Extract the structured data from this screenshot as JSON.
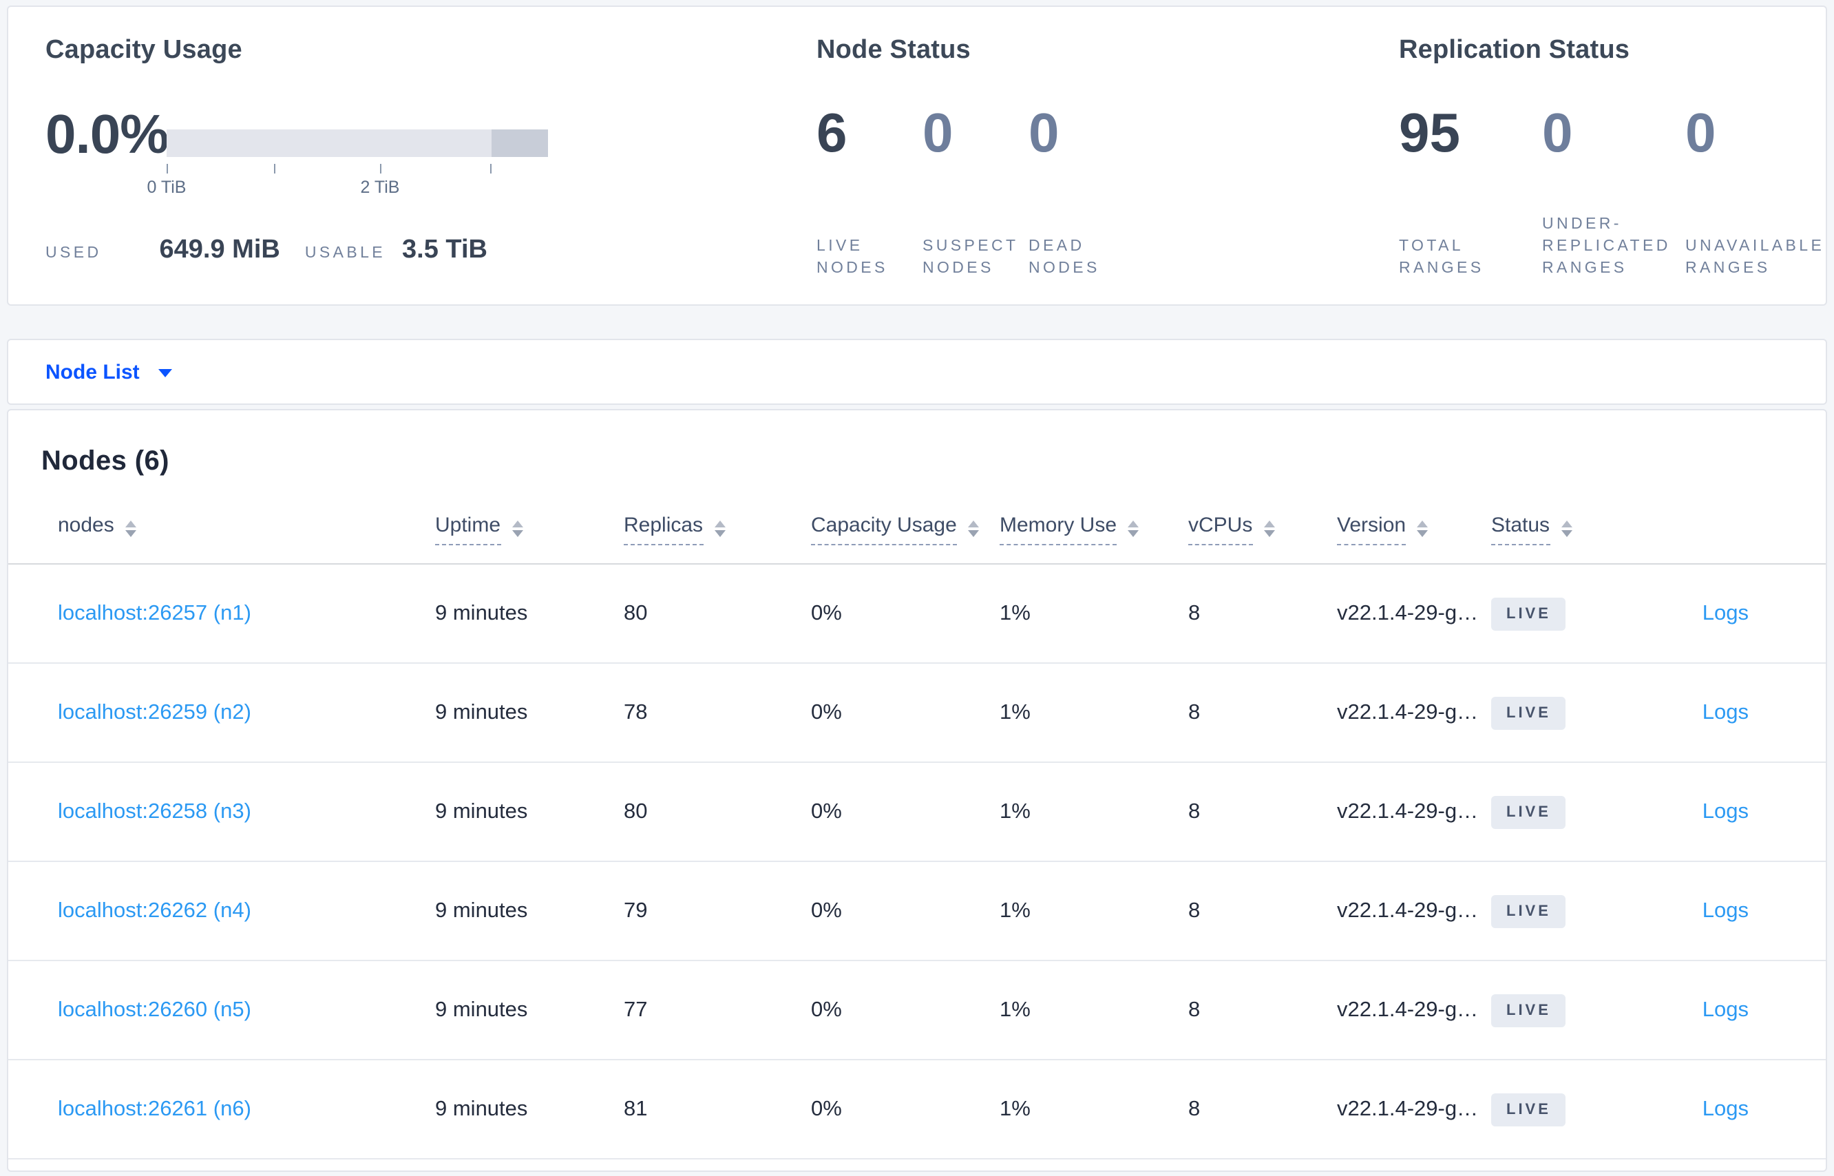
{
  "summary": {
    "capacity": {
      "title": "Capacity Usage",
      "percent": "0.0%",
      "tick_labels": [
        "0 TiB",
        "2 TiB"
      ],
      "used_label": "USED",
      "used_value": "649.9 MiB",
      "usable_label": "USABLE",
      "usable_value": "3.5 TiB"
    },
    "node_status": {
      "title": "Node Status",
      "stats": [
        {
          "value": "6",
          "label": "LIVE NODES"
        },
        {
          "value": "0",
          "label": "SUSPECT NODES"
        },
        {
          "value": "0",
          "label": "DEAD NODES"
        }
      ]
    },
    "replication_status": {
      "title": "Replication Status",
      "stats": [
        {
          "value": "95",
          "label": "TOTAL RANGES"
        },
        {
          "value": "0",
          "label": "UNDER-REPLICATED RANGES"
        },
        {
          "value": "0",
          "label": "UNAVAILABLE RANGES"
        }
      ]
    }
  },
  "node_list": {
    "label": "Node List",
    "icon": "caret-down-icon"
  },
  "table": {
    "title": "Nodes (6)",
    "columns": [
      "nodes",
      "Uptime",
      "Replicas",
      "Capacity Usage",
      "Memory Use",
      "vCPUs",
      "Version",
      "Status"
    ],
    "logs_label": "Logs",
    "rows": [
      {
        "node": "localhost:26257 (n1)",
        "uptime": "9 minutes",
        "replicas": "80",
        "capacity_usage": "0%",
        "memory_use": "1%",
        "vcpus": "8",
        "version": "v22.1.4-29-g…",
        "status": "LIVE"
      },
      {
        "node": "localhost:26259 (n2)",
        "uptime": "9 minutes",
        "replicas": "78",
        "capacity_usage": "0%",
        "memory_use": "1%",
        "vcpus": "8",
        "version": "v22.1.4-29-g…",
        "status": "LIVE"
      },
      {
        "node": "localhost:26258 (n3)",
        "uptime": "9 minutes",
        "replicas": "80",
        "capacity_usage": "0%",
        "memory_use": "1%",
        "vcpus": "8",
        "version": "v22.1.4-29-g…",
        "status": "LIVE"
      },
      {
        "node": "localhost:26262 (n4)",
        "uptime": "9 minutes",
        "replicas": "79",
        "capacity_usage": "0%",
        "memory_use": "1%",
        "vcpus": "8",
        "version": "v22.1.4-29-g…",
        "status": "LIVE"
      },
      {
        "node": "localhost:26260 (n5)",
        "uptime": "9 minutes",
        "replicas": "77",
        "capacity_usage": "0%",
        "memory_use": "1%",
        "vcpus": "8",
        "version": "v22.1.4-29-g…",
        "status": "LIVE"
      },
      {
        "node": "localhost:26261 (n6)",
        "uptime": "9 minutes",
        "replicas": "81",
        "capacity_usage": "0%",
        "memory_use": "1%",
        "vcpus": "8",
        "version": "v22.1.4-29-g…",
        "status": "LIVE"
      }
    ]
  },
  "colors": {
    "accent_blue": "#0b54ff",
    "link_blue": "#2b99f3",
    "badge_bg": "#e7ebf2",
    "bar_light": "#e3e5ec",
    "bar_dark": "#c8cdd8"
  }
}
